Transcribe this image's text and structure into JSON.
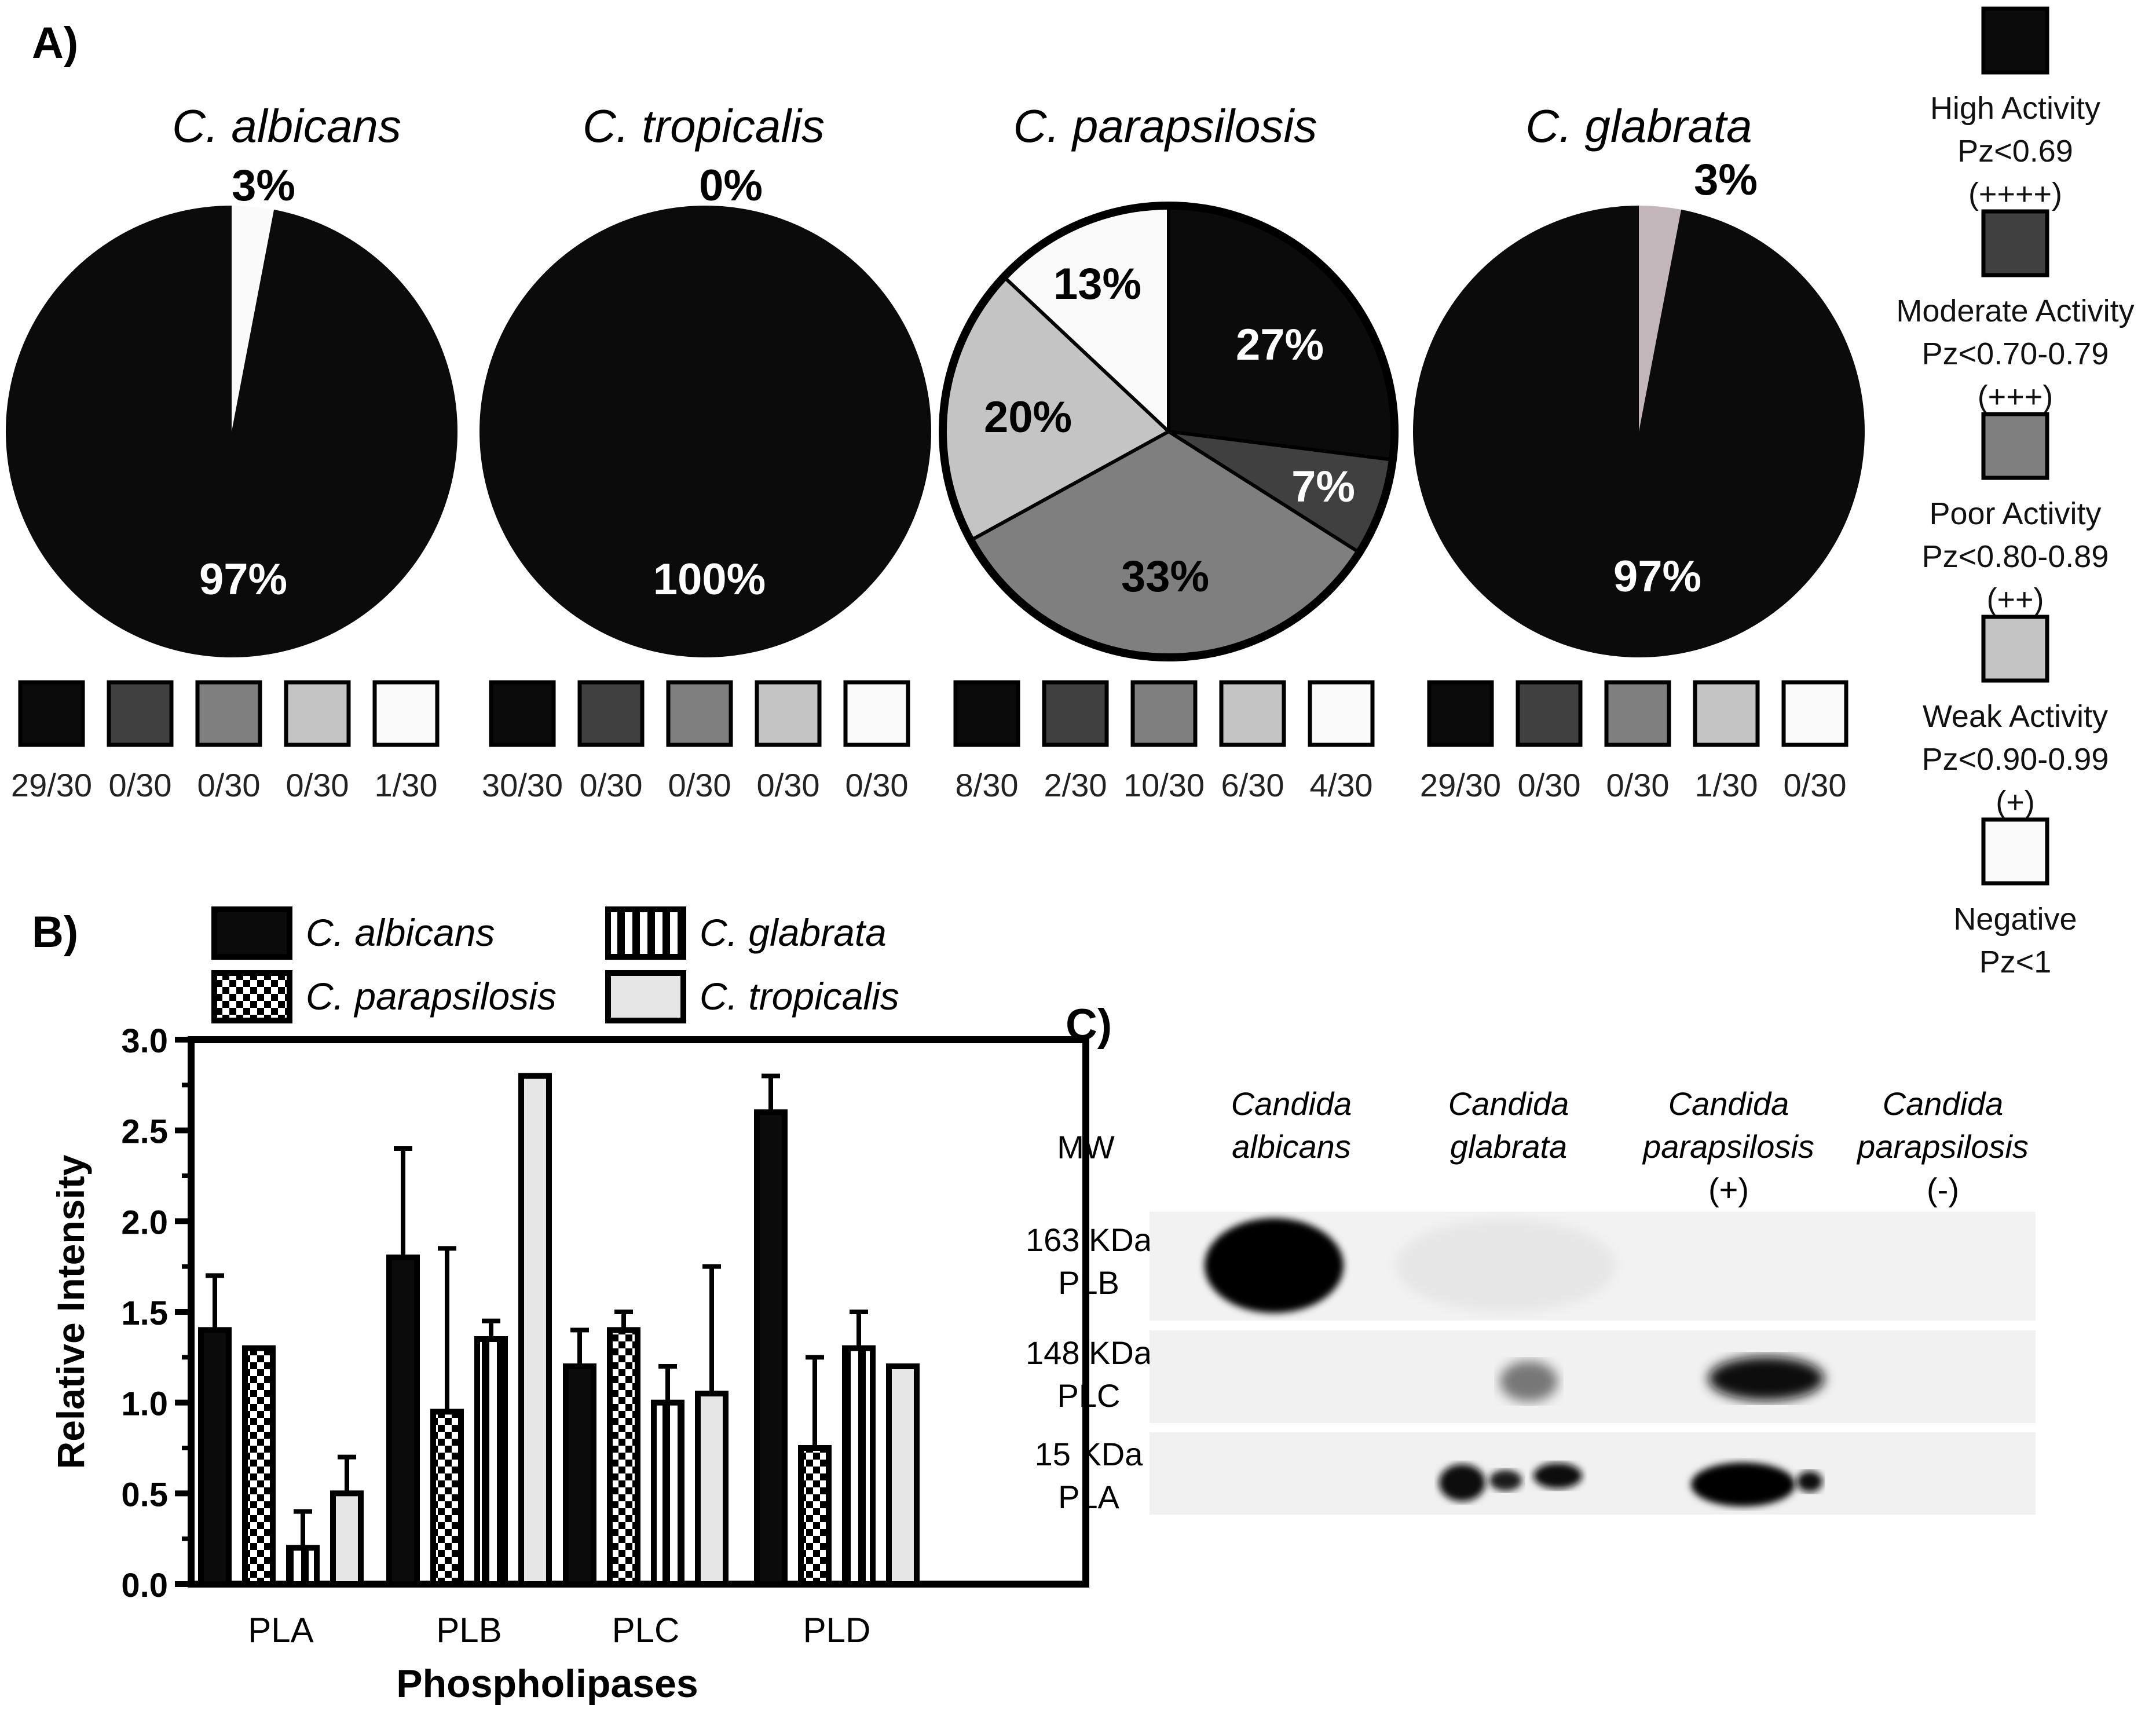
{
  "panel_labels": {
    "a": "A)",
    "b": "B)",
    "c": "C)"
  },
  "colors": {
    "high": "#0b0b0b",
    "moderate": "#404040",
    "poor": "#7f7f7f",
    "weak": "#c4c4c4",
    "negative": "#fafafa",
    "glabrata_slice": "#c2b6bb",
    "tropicalis_bar": "#e6e6e6"
  },
  "legend_a": [
    {
      "key": "high",
      "lines": [
        "High Activity",
        "Pz<0.69",
        "(++++)"
      ]
    },
    {
      "key": "moderate",
      "lines": [
        "Moderate Activity",
        "Pz<0.70-0.79",
        "(+++)"
      ]
    },
    {
      "key": "poor",
      "lines": [
        "Poor Activity",
        "Pz<0.80-0.89",
        "(++)"
      ]
    },
    {
      "key": "weak",
      "lines": [
        "Weak Activity",
        "Pz<0.90-0.99",
        "(+)"
      ]
    },
    {
      "key": "negative",
      "lines": [
        "Negative",
        "Pz<1"
      ]
    }
  ],
  "chart_data": [
    {
      "type": "pie",
      "title": "C. albicans",
      "slices": [
        {
          "category": "high",
          "value": 97,
          "label": "97%",
          "count": "29/30"
        },
        {
          "category": "moderate",
          "value": 0,
          "label": "",
          "count": "0/30"
        },
        {
          "category": "poor",
          "value": 0,
          "label": "",
          "count": "0/30"
        },
        {
          "category": "weak",
          "value": 0,
          "label": "",
          "count": "0/30"
        },
        {
          "category": "negative",
          "value": 3,
          "label": "3%",
          "count": "1/30"
        }
      ]
    },
    {
      "type": "pie",
      "title": "C. tropicalis",
      "slices": [
        {
          "category": "high",
          "value": 100,
          "label": "100%",
          "count": "30/30"
        },
        {
          "category": "moderate",
          "value": 0,
          "label": "",
          "count": "0/30"
        },
        {
          "category": "poor",
          "value": 0,
          "label": "",
          "count": "0/30"
        },
        {
          "category": "weak",
          "value": 0,
          "label": "",
          "count": "0/30"
        },
        {
          "category": "negative",
          "value": 0,
          "label": "0%",
          "count": "0/30"
        }
      ]
    },
    {
      "type": "pie",
      "title": "C. parapsilosis",
      "slices": [
        {
          "category": "high",
          "value": 27,
          "label": "27%",
          "count": "8/30"
        },
        {
          "category": "moderate",
          "value": 7,
          "label": "7%",
          "count": "2/30"
        },
        {
          "category": "poor",
          "value": 33,
          "label": "33%",
          "count": "10/30"
        },
        {
          "category": "weak",
          "value": 20,
          "label": "20%",
          "count": "6/30"
        },
        {
          "category": "negative",
          "value": 13,
          "label": "13%",
          "count": "4/30"
        }
      ]
    },
    {
      "type": "pie",
      "title": "C. glabrata",
      "slices": [
        {
          "category": "high",
          "value": 97,
          "label": "97%",
          "count": "29/30"
        },
        {
          "category": "moderate",
          "value": 0,
          "label": "",
          "count": "0/30"
        },
        {
          "category": "poor",
          "value": 0,
          "label": "",
          "count": "0/30"
        },
        {
          "category": "weak",
          "value": 3,
          "label": "3%",
          "count": "1/30"
        },
        {
          "category": "negative",
          "value": 0,
          "label": "",
          "count": "0/30"
        }
      ]
    },
    {
      "type": "bar",
      "title": "",
      "xlabel": "Phospholipases",
      "ylabel": "Relative Intensity",
      "categories": [
        "PLA",
        "PLB",
        "PLC",
        "PLD"
      ],
      "ylim": [
        0,
        3.0
      ],
      "yticks": [
        "0.0",
        "0.5",
        "1.0",
        "1.5",
        "2.0",
        "2.5",
        "3.0"
      ],
      "legend": "top",
      "series": [
        {
          "name": "C. albicans",
          "pattern": "solid",
          "values": [
            1.4,
            1.8,
            1.2,
            2.6
          ],
          "errors": [
            0.3,
            0.6,
            0.2,
            0.2
          ]
        },
        {
          "name": "C. parapsilosis",
          "pattern": "checker",
          "values": [
            1.3,
            0.95,
            1.4,
            0.75
          ],
          "errors": [
            0,
            0.9,
            0.1,
            0.5
          ]
        },
        {
          "name": "C. glabrata",
          "pattern": "vertical-stripes",
          "values": [
            0.2,
            1.35,
            1.0,
            1.3
          ],
          "errors": [
            0.2,
            0.1,
            0.2,
            0.2
          ]
        },
        {
          "name": "C. tropicalis",
          "pattern": "light",
          "values": [
            0.5,
            2.8,
            1.05,
            1.2
          ],
          "errors": [
            0.2,
            0,
            0.7,
            0
          ]
        }
      ]
    }
  ],
  "blot": {
    "mw_header": "MW",
    "columns": [
      {
        "lines": [
          "Candida",
          "albicans"
        ]
      },
      {
        "lines": [
          "Candida",
          "glabrata"
        ]
      },
      {
        "lines": [
          "Candida",
          "parapsilosis",
          "(+)"
        ]
      },
      {
        "lines": [
          "Candida",
          "parapsilosis",
          "(-)"
        ]
      }
    ],
    "rows": [
      {
        "lines": [
          "163 KDa",
          "PLB"
        ]
      },
      {
        "lines": [
          "148 KDa",
          "PLC"
        ]
      },
      {
        "lines": [
          "15 KDa",
          "PLA"
        ]
      }
    ]
  }
}
